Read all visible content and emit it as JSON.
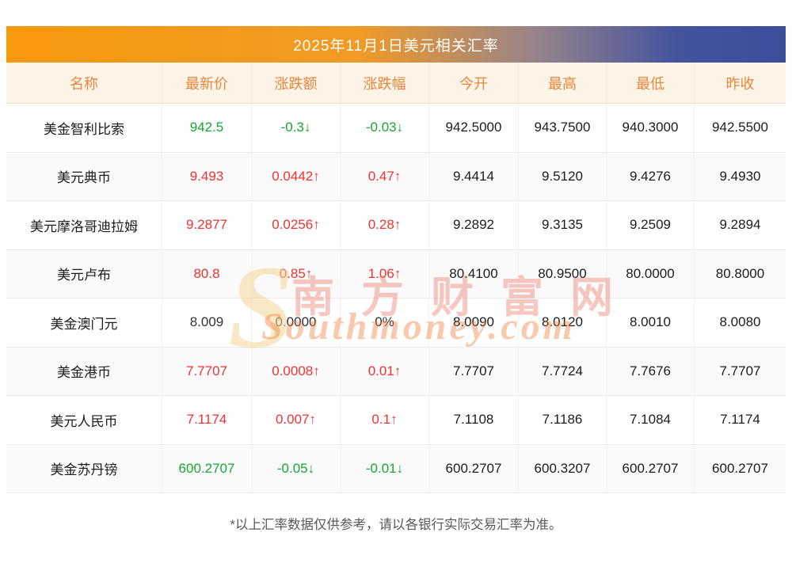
{
  "chart_data": {
    "type": "table",
    "title": "2025年11月1日美元相关汇率",
    "columns": [
      "名称",
      "最新价",
      "涨跌额",
      "涨跌幅",
      "今开",
      "最高",
      "最低",
      "昨收"
    ],
    "rows": [
      {
        "cells": [
          "美金智利比索",
          "942.5",
          "-0.3↓",
          "-0.03↓",
          "942.5000",
          "943.7500",
          "940.3000",
          "942.5500"
        ],
        "trend": "down"
      },
      {
        "cells": [
          "美元典币",
          "9.493",
          "0.0442↑",
          "0.47↑",
          "9.4414",
          "9.5120",
          "9.4276",
          "9.4930"
        ],
        "trend": "up"
      },
      {
        "cells": [
          "美元摩洛哥迪拉姆",
          "9.2877",
          "0.0256↑",
          "0.28↑",
          "9.2892",
          "9.3135",
          "9.2509",
          "9.2894"
        ],
        "trend": "up"
      },
      {
        "cells": [
          "美元卢布",
          "80.8",
          "0.85↑",
          "1.06↑",
          "80.4100",
          "80.9500",
          "80.0000",
          "80.8000"
        ],
        "trend": "up"
      },
      {
        "cells": [
          "美金澳门元",
          "8.009",
          "0.0000",
          "0%",
          "8.0090",
          "8.0120",
          "8.0010",
          "8.0080"
        ],
        "trend": "flat"
      },
      {
        "cells": [
          "美金港币",
          "7.7707",
          "0.0008↑",
          "0.01↑",
          "7.7707",
          "7.7724",
          "7.7676",
          "7.7707"
        ],
        "trend": "up"
      },
      {
        "cells": [
          "美元人民币",
          "7.1174",
          "0.007↑",
          "0.1↑",
          "7.1108",
          "7.1186",
          "7.1084",
          "7.1174"
        ],
        "trend": "up"
      },
      {
        "cells": [
          "美金苏丹镑",
          "600.2707",
          "-0.05↓",
          "-0.01↓",
          "600.2707",
          "600.3207",
          "600.2707",
          "600.2707"
        ],
        "trend": "down"
      }
    ],
    "footnote": "*以上汇率数据仅供参考，请以各银行实际交易汇率为准。"
  },
  "watermark": {
    "logo_initial": "S",
    "cn": "南方财富网",
    "en": "Southmoney.com"
  },
  "colors": {
    "up": "#ee3333",
    "down": "#18a634",
    "flat": "#333333",
    "header_text": "#e7863c",
    "header_bg": "#fdf4e7",
    "title_gradient_left": "#f6990e",
    "title_gradient_right": "#3c4e9b"
  }
}
